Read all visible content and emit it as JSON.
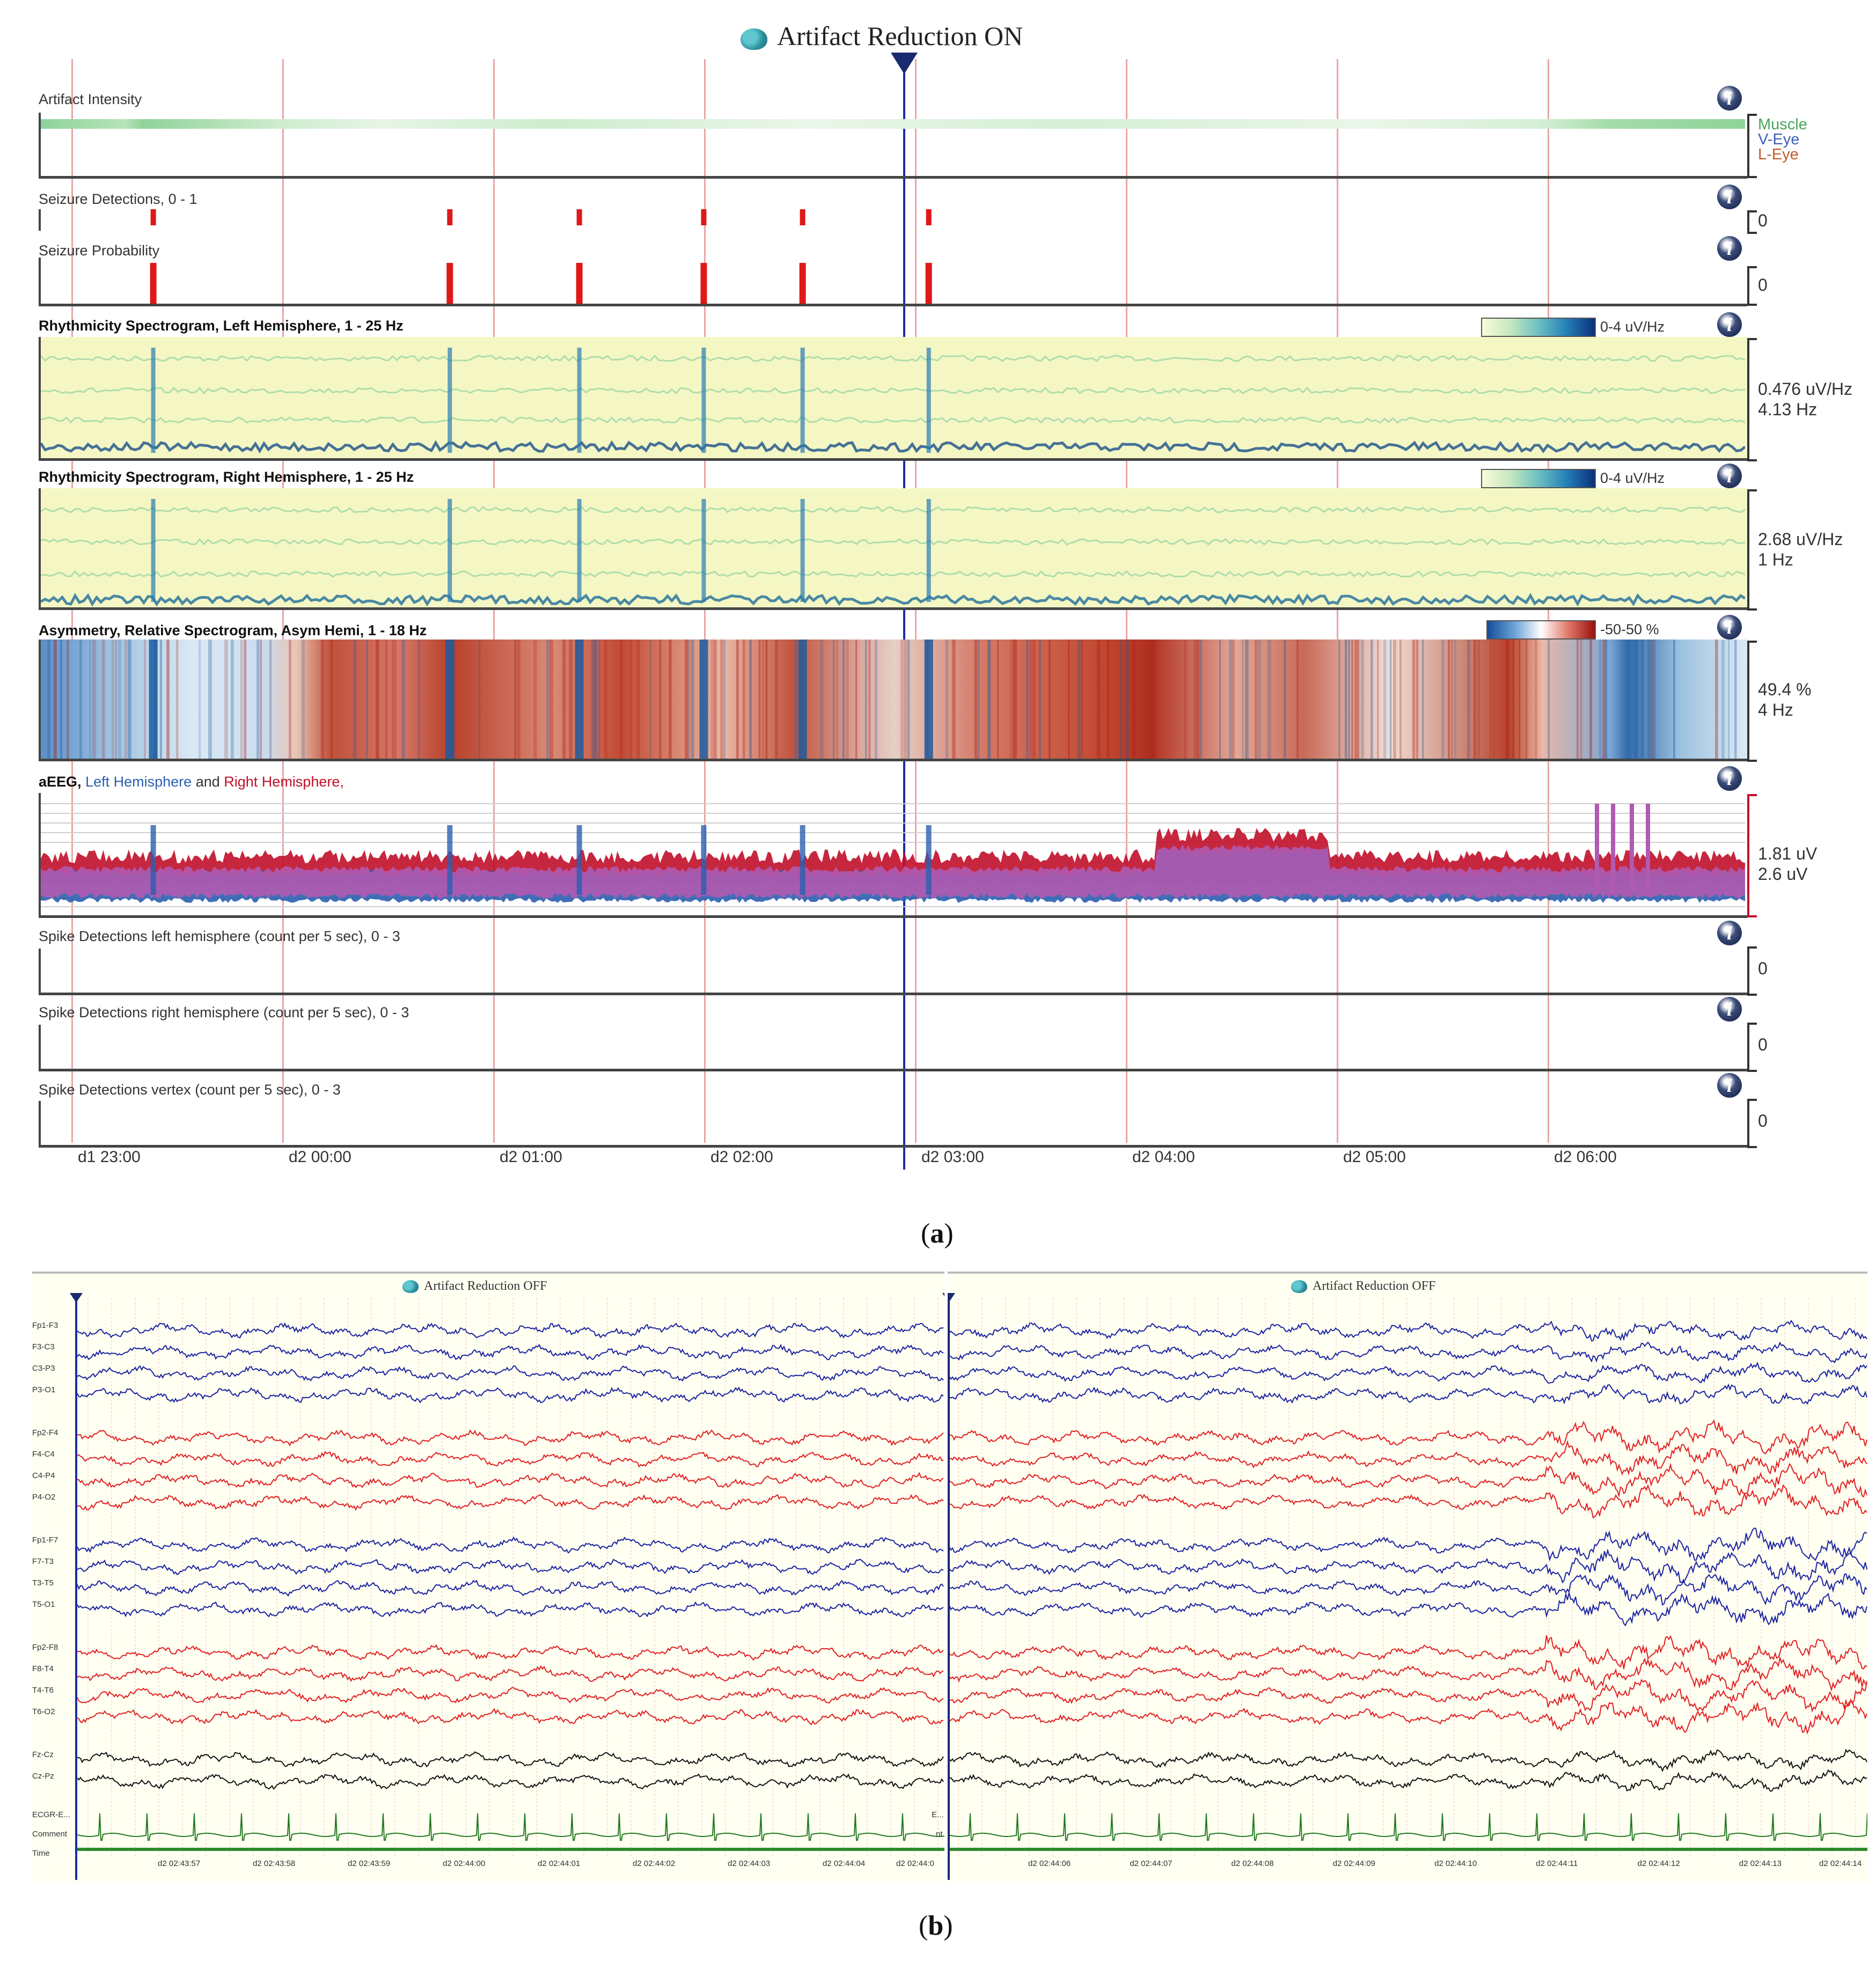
{
  "panel_a": {
    "title": "Artifact Reduction ON",
    "caption_prefix": "(",
    "caption_letter": "a",
    "caption_suffix": ")",
    "tracks": {
      "artifact": {
        "label": "Artifact Intensity",
        "legend": [
          "Muscle",
          "V-Eye",
          "L-Eye"
        ]
      },
      "seizure_det": {
        "label": "Seizure Detections, 0 - 1",
        "scale": "0"
      },
      "seizure_prob": {
        "label": "Seizure Probability",
        "scale": "0"
      },
      "rhythm_left": {
        "label": "Rhythmicity Spectrogram, Left Hemisphere, 1 - 25 Hz",
        "colorbar": "0-4 uV/Hz",
        "scale_1": "0.476 uV/Hz",
        "scale_2": "4.13 Hz"
      },
      "rhythm_right": {
        "label": "Rhythmicity Spectrogram, Right Hemisphere, 1 - 25 Hz",
        "colorbar": "0-4 uV/Hz",
        "scale_1": "2.68 uV/Hz",
        "scale_2": "1 Hz"
      },
      "asym": {
        "label": "Asymmetry, Relative Spectrogram, Asym Hemi, 1 - 18 Hz",
        "colorbar": "-50-50 %",
        "scale_1": "49.4 %",
        "scale_2": "4 Hz"
      },
      "aeeg": {
        "label_a": "aEEG,",
        "label_b": "Left Hemisphere",
        "label_c": "and",
        "label_d": "Right Hemisphere,",
        "scale_1": "1.81 uV",
        "scale_2": "2.6 uV"
      },
      "spike_left": {
        "label": "Spike Detections left hemisphere (count per 5 sec), 0 - 3",
        "scale": "0"
      },
      "spike_right": {
        "label": "Spike Detections right hemisphere (count per 5 sec), 0 - 3",
        "scale": "0"
      },
      "spike_vertex": {
        "label": "Spike Detections vertex (count per 5 sec), 0 - 3",
        "scale": "0"
      }
    },
    "info_glyph": "i",
    "time_ticks": [
      "d1 23:00",
      "d2 00:00",
      "d2 01:00",
      "d2 02:00",
      "d2 03:00",
      "d2 04:00",
      "d2 05:00",
      "d2 06:00"
    ],
    "cursor_time_fraction": 0.52,
    "seizure_events_fraction": [
      0.066,
      0.24,
      0.316,
      0.389,
      0.447,
      0.521
    ],
    "colors": {
      "left_hemi": "#2b5fb0",
      "right_hemi": "#c0102a",
      "overlap": "#b05ab0",
      "seizure": "#e01818",
      "grid": "#e9a6a6",
      "cursor": "#1a2ea8"
    }
  },
  "panel_b": {
    "caption_prefix": "(",
    "caption_letter": "b",
    "caption_suffix": ")",
    "left_title": "Artifact Reduction OFF",
    "right_title": "Artifact Reduction OFF",
    "channels": [
      {
        "name": "Fp1-F3",
        "color": "#1a22a0"
      },
      {
        "name": "F3-C3",
        "color": "#1a22a0"
      },
      {
        "name": "C3-P3",
        "color": "#1a22a0"
      },
      {
        "name": "P3-O1",
        "color": "#1a22a0"
      },
      {
        "name": "Fp2-F4",
        "color": "#e02020"
      },
      {
        "name": "F4-C4",
        "color": "#e02020"
      },
      {
        "name": "C4-P4",
        "color": "#e02020"
      },
      {
        "name": "P4-O2",
        "color": "#e02020"
      },
      {
        "name": "Fp1-F7",
        "color": "#1a22a0"
      },
      {
        "name": "F7-T3",
        "color": "#1a22a0"
      },
      {
        "name": "T3-T5",
        "color": "#1a22a0"
      },
      {
        "name": "T5-O1",
        "color": "#1a22a0"
      },
      {
        "name": "Fp2-F8",
        "color": "#e02020"
      },
      {
        "name": "F8-T4",
        "color": "#e02020"
      },
      {
        "name": "T4-T6",
        "color": "#e02020"
      },
      {
        "name": "T6-O2",
        "color": "#e02020"
      },
      {
        "name": "Fz-Cz",
        "color": "#111111"
      },
      {
        "name": "Cz-Pz",
        "color": "#111111"
      }
    ],
    "ecg_label": "ECGR-E...",
    "ecg_right_label": "E...",
    "comment_label": "Comment",
    "comment_right_label": "nt",
    "time_label": "Time",
    "left_times": [
      "d2 02:43:57",
      "d2 02:43:58",
      "d2 02:43:59",
      "d2 02:44:00",
      "d2 02:44:01",
      "d2 02:44:02",
      "d2 02:44:03",
      "d2 02:44:04",
      "d2 02:44:0"
    ],
    "right_times": [
      "d2 02:44:06",
      "d2 02:44:07",
      "d2 02:44:08",
      "d2 02:44:09",
      "d2 02:44:10",
      "d2 02:44:11",
      "d2 02:44:12",
      "d2 02:44:13",
      "d2 02:44:14"
    ],
    "colors": {
      "ecg": "#1f7a1f",
      "comment_bar": "#2e8b2e",
      "cursor": "#1a2ea8"
    }
  }
}
